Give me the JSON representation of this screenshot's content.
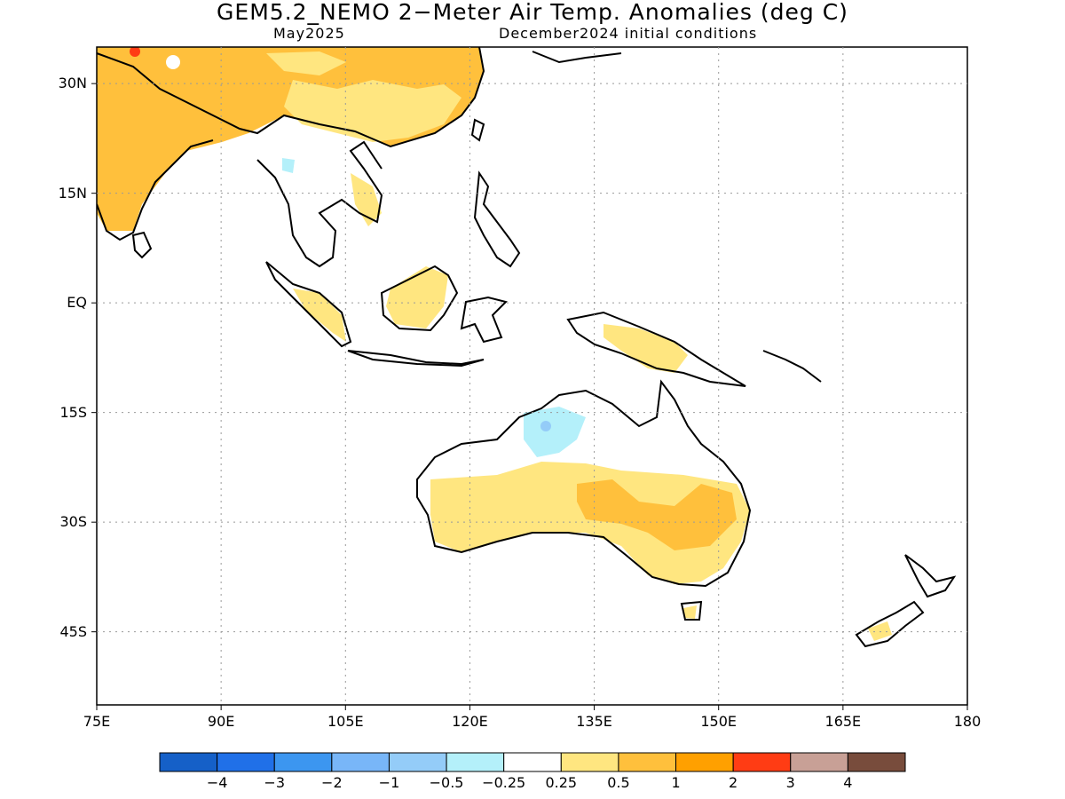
{
  "header": {
    "title": "GEM5.2_NEMO 2−Meter Air Temp. Anomalies (deg C)",
    "valid_month": "May2025",
    "init": "December2024 initial conditions"
  },
  "map": {
    "lon_range": [
      75,
      180
    ],
    "lat_range": [
      -55,
      35
    ],
    "lat_ticks": [
      {
        "value": 30,
        "label": "30N"
      },
      {
        "value": 15,
        "label": "15N"
      },
      {
        "value": 0,
        "label": "EQ"
      },
      {
        "value": -15,
        "label": "15S"
      },
      {
        "value": -30,
        "label": "30S"
      },
      {
        "value": -45,
        "label": "45S"
      }
    ],
    "lon_ticks": [
      {
        "value": 75,
        "label": "75E"
      },
      {
        "value": 90,
        "label": "90E"
      },
      {
        "value": 105,
        "label": "105E"
      },
      {
        "value": 120,
        "label": "120E"
      },
      {
        "value": 135,
        "label": "135E"
      },
      {
        "value": 150,
        "label": "150E"
      },
      {
        "value": 165,
        "label": "165E"
      },
      {
        "value": 180,
        "label": "180"
      }
    ],
    "grid": "dotted",
    "coastline_color": "#000000"
  },
  "colorbar": {
    "colors": [
      "#1560c8",
      "#2070e8",
      "#3c96f0",
      "#78b6f8",
      "#94ccf8",
      "#b4f0fa",
      "#ffffff",
      "#ffe680",
      "#ffc03c",
      "#ffa000",
      "#ff3c14",
      "#c8a096",
      "#784c3c"
    ],
    "labels": [
      "−4",
      "−3",
      "−2",
      "−1",
      "−0.5",
      "−0.25",
      "0.25",
      "0.5",
      "1",
      "2",
      "3",
      "4"
    ]
  }
}
